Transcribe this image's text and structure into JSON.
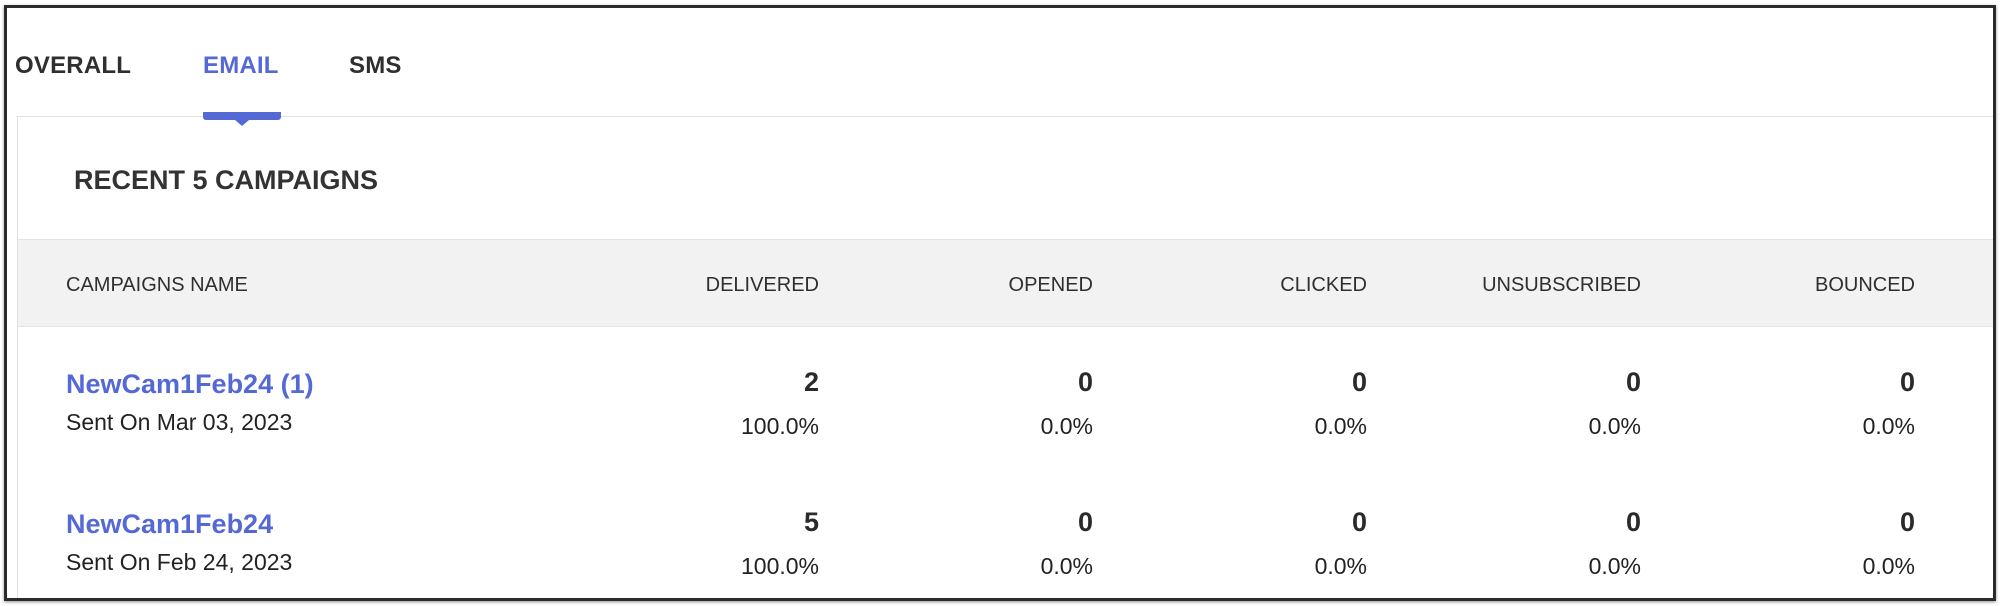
{
  "tabs": [
    {
      "label": "OVERALL",
      "active": false
    },
    {
      "label": "EMAIL",
      "active": true
    },
    {
      "label": "SMS",
      "active": false
    }
  ],
  "card": {
    "title": "RECENT 5 CAMPAIGNS"
  },
  "table": {
    "headers": {
      "name": "CAMPAIGNS NAME",
      "delivered": "DELIVERED",
      "opened": "OPENED",
      "clicked": "CLICKED",
      "unsubscribed": "UNSUBSCRIBED",
      "bounced": "BOUNCED"
    },
    "rows": [
      {
        "name": "NewCam1Feb24 (1)",
        "sent": "Sent On Mar 03, 2023",
        "delivered": {
          "count": "2",
          "pct": "100.0%"
        },
        "opened": {
          "count": "0",
          "pct": "0.0%"
        },
        "clicked": {
          "count": "0",
          "pct": "0.0%"
        },
        "unsubscribed": {
          "count": "0",
          "pct": "0.0%"
        },
        "bounced": {
          "count": "0",
          "pct": "0.0%"
        }
      },
      {
        "name": "NewCam1Feb24",
        "sent": "Sent On Feb 24, 2023",
        "delivered": {
          "count": "5",
          "pct": "100.0%"
        },
        "opened": {
          "count": "0",
          "pct": "0.0%"
        },
        "clicked": {
          "count": "0",
          "pct": "0.0%"
        },
        "unsubscribed": {
          "count": "0",
          "pct": "0.0%"
        },
        "bounced": {
          "count": "0",
          "pct": "0.0%"
        }
      }
    ]
  },
  "colors": {
    "accent": "#5469d4",
    "header_bg": "#f2f2f2"
  }
}
